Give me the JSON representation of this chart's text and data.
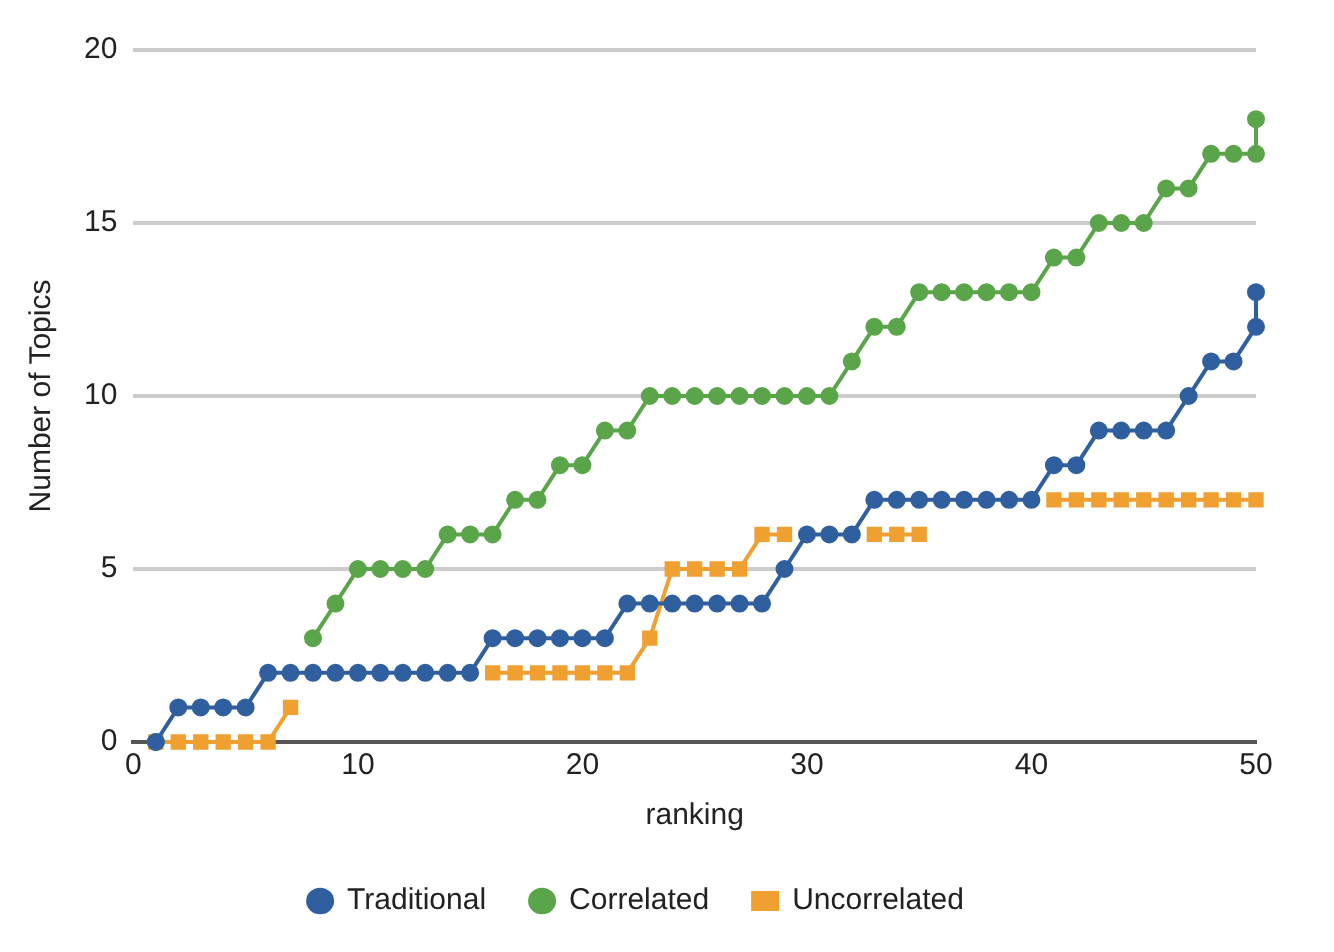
{
  "chart_data": {
    "type": "line",
    "xlabel": "ranking",
    "ylabel": "Number of Topics",
    "xlim": [
      0,
      50
    ],
    "xticks": [
      0,
      10,
      20,
      30,
      40,
      50
    ],
    "ylim": [
      0,
      20
    ],
    "yticks": [
      0,
      5,
      10,
      15,
      20
    ],
    "grid": "y",
    "legend": "bottom",
    "line_style": "solid",
    "series": [
      {
        "name": "Traditional",
        "color": "#2f5f9e",
        "marker": "circle",
        "x": [
          1,
          2,
          3,
          4,
          5,
          6,
          7,
          8,
          9,
          10,
          11,
          12,
          13,
          14,
          15,
          16,
          17,
          18,
          19,
          20,
          21,
          22,
          23,
          24,
          25,
          26,
          27,
          28,
          29,
          30,
          31,
          32,
          33,
          34,
          35,
          36,
          37,
          38,
          39,
          40,
          41,
          42,
          43,
          44,
          45,
          46,
          47,
          48,
          49,
          50,
          50
        ],
        "values": [
          0,
          1,
          1,
          1,
          1,
          2,
          2,
          2,
          2,
          2,
          2,
          2,
          2,
          2,
          2,
          3,
          3,
          3,
          3,
          3,
          3,
          4,
          4,
          4,
          4,
          4,
          4,
          4,
          5,
          6,
          6,
          6,
          7,
          7,
          7,
          7,
          7,
          7,
          7,
          7,
          8,
          8,
          9,
          9,
          9,
          9,
          10,
          11,
          11,
          12,
          13
        ]
      },
      {
        "name": "Correlated",
        "color": "#5aa54a",
        "marker": "circle",
        "x": [
          1,
          2,
          3,
          4,
          5,
          6,
          7,
          8,
          9,
          10,
          11,
          12,
          13,
          14,
          15,
          16,
          17,
          18,
          19,
          20,
          21,
          22,
          23,
          24,
          25,
          26,
          27,
          28,
          29,
          30,
          31,
          32,
          33,
          34,
          35,
          36,
          37,
          38,
          39,
          40,
          41,
          42,
          43,
          44,
          45,
          46,
          47,
          48,
          49,
          50,
          50
        ],
        "values": [
          0,
          null,
          null,
          null,
          null,
          null,
          null,
          3,
          4,
          5,
          5,
          5,
          5,
          6,
          6,
          6,
          7,
          7,
          8,
          8,
          9,
          9,
          10,
          10,
          10,
          10,
          10,
          10,
          10,
          10,
          10,
          11,
          12,
          12,
          13,
          13,
          13,
          13,
          13,
          13,
          14,
          14,
          15,
          15,
          15,
          16,
          16,
          17,
          17,
          17,
          18
        ]
      },
      {
        "name": "Uncorrelated",
        "color": "#f0a030",
        "marker": "square",
        "x": [
          1,
          2,
          3,
          4,
          5,
          6,
          7,
          8,
          9,
          10,
          11,
          12,
          13,
          14,
          15,
          16,
          17,
          18,
          19,
          20,
          21,
          22,
          23,
          24,
          25,
          26,
          27,
          28,
          29,
          30,
          31,
          32,
          33,
          34,
          35,
          36,
          37,
          38,
          39,
          40,
          41,
          42,
          43,
          44,
          45,
          46,
          47,
          48,
          49,
          50
        ],
        "values": [
          0,
          0,
          0,
          0,
          0,
          0,
          1,
          null,
          null,
          null,
          null,
          null,
          null,
          null,
          null,
          2,
          2,
          2,
          2,
          2,
          2,
          2,
          3,
          5,
          5,
          5,
          5,
          6,
          6,
          null,
          null,
          null,
          6,
          6,
          6,
          null,
          null,
          null,
          null,
          null,
          7,
          7,
          7,
          7,
          7,
          7,
          7,
          7,
          7,
          7
        ]
      }
    ]
  }
}
